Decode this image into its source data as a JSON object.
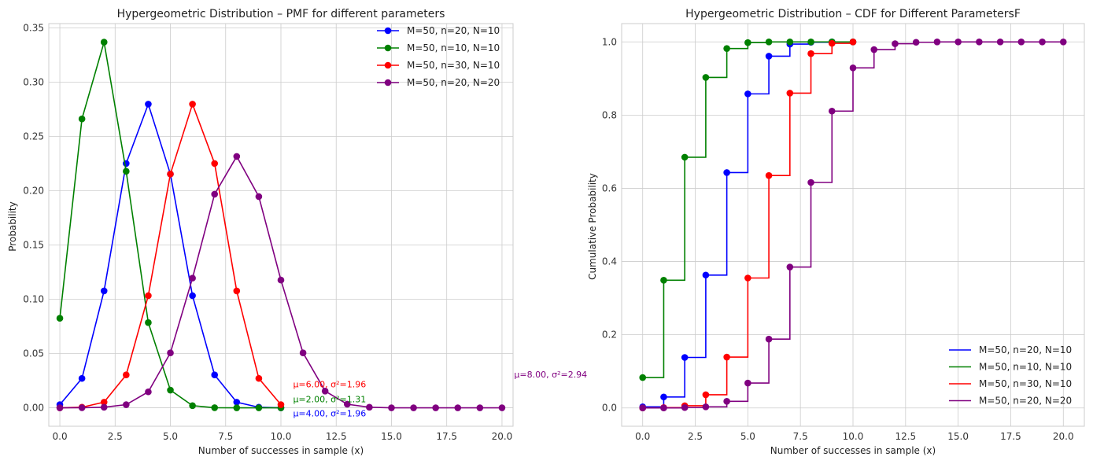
{
  "chart_data": [
    {
      "type": "line",
      "title": "Hypergeometric Distribution – PMF for different parameters",
      "xlabel": "Number of successes in sample (x)",
      "ylabel": "Probability",
      "xlim": [
        -0.5,
        20.5
      ],
      "ylim": [
        -0.017,
        0.354
      ],
      "xticks": [
        0.0,
        2.5,
        5.0,
        7.5,
        10.0,
        12.5,
        15.0,
        17.5,
        20.0
      ],
      "yticks": [
        0.0,
        0.05,
        0.1,
        0.15,
        0.2,
        0.25,
        0.3,
        0.35
      ],
      "xtick_labels": [
        "0.0",
        "2.5",
        "5.0",
        "7.5",
        "10.0",
        "12.5",
        "15.0",
        "17.5",
        "20.0"
      ],
      "ytick_labels": [
        "0.00",
        "0.05",
        "0.10",
        "0.15",
        "0.20",
        "0.25",
        "0.30",
        "0.35"
      ],
      "grid": true,
      "legend": "top-right",
      "series": [
        {
          "name": "M=50, n=20, N=10",
          "color": "#0000ff",
          "x": [
            0,
            1,
            2,
            3,
            4,
            5,
            6,
            7,
            8,
            9,
            10
          ],
          "y": [
            0.0029,
            0.0271,
            0.1077,
            0.2251,
            0.2798,
            0.2154,
            0.1033,
            0.0303,
            0.0052,
            0.0005,
            0.0
          ]
        },
        {
          "name": "M=50, n=10, N=10",
          "color": "#008000",
          "x": [
            0,
            1,
            2,
            3,
            4,
            5,
            6,
            7,
            8,
            9,
            10
          ],
          "y": [
            0.0825,
            0.2662,
            0.3369,
            0.2179,
            0.0785,
            0.0163,
            0.002,
            0.0001,
            0.0,
            0.0,
            0.0
          ]
        },
        {
          "name": "M=50, n=30, N=10",
          "color": "#ff0000",
          "x": [
            0,
            1,
            2,
            3,
            4,
            5,
            6,
            7,
            8,
            9,
            10
          ],
          "y": [
            0.0,
            0.0005,
            0.0052,
            0.0303,
            0.1033,
            0.2154,
            0.2798,
            0.2251,
            0.1077,
            0.0271,
            0.0029
          ]
        },
        {
          "name": "M=50, n=20, N=20",
          "color": "#800080",
          "x": [
            0,
            1,
            2,
            3,
            4,
            5,
            6,
            7,
            8,
            9,
            10,
            11,
            12,
            13,
            14,
            15,
            16,
            17,
            18,
            19,
            20
          ],
          "y": [
            0.0,
            0.0001,
            0.0005,
            0.0029,
            0.0147,
            0.0506,
            0.1195,
            0.1968,
            0.2316,
            0.1946,
            0.1177,
            0.0506,
            0.0154,
            0.0033,
            0.0005,
            0.0,
            0.0,
            0.0,
            0.0,
            0.0,
            0.0
          ]
        }
      ],
      "annotations": [
        {
          "text": "μ=4.00, σ²=1.96",
          "x": 10.55,
          "y": -0.008,
          "color": "#0000ff"
        },
        {
          "text": "μ=2.00, σ²=1.31",
          "x": 10.55,
          "y": 0.005,
          "color": "#008000"
        },
        {
          "text": "μ=6.00, σ²=1.96",
          "x": 10.55,
          "y": 0.019,
          "color": "#ff0000"
        },
        {
          "text": "μ=8.00, σ²=2.94",
          "x": 20.55,
          "y": 0.028,
          "color": "#800080"
        }
      ]
    },
    {
      "type": "line",
      "title": "Hypergeometric Distribution – CDF for Different ParametersF",
      "xlabel": "Number of successes in sample (x)",
      "ylabel": "Cumulative Probability",
      "xlim": [
        -1.0,
        21.0
      ],
      "ylim": [
        -0.05,
        1.05
      ],
      "xticks": [
        0.0,
        2.5,
        5.0,
        7.5,
        10.0,
        12.5,
        15.0,
        17.5,
        20.0
      ],
      "yticks": [
        0.0,
        0.2,
        0.4,
        0.6,
        0.8,
        1.0
      ],
      "xtick_labels": [
        "0.0",
        "2.5",
        "5.0",
        "7.5",
        "10.0",
        "12.5",
        "15.0",
        "17.5",
        "20.0"
      ],
      "ytick_labels": [
        "0.0",
        "0.2",
        "0.4",
        "0.6",
        "0.8",
        "1.0"
      ],
      "grid": true,
      "legend": "bottom-right",
      "step": "post",
      "series": [
        {
          "name": "M=50, n=20, N=10",
          "color": "#0000ff",
          "x": [
            0,
            1,
            2,
            3,
            4,
            5,
            6,
            7,
            8,
            9,
            10
          ],
          "y": [
            0.003,
            0.03,
            0.138,
            0.363,
            0.643,
            0.858,
            0.961,
            0.994,
            0.999,
            1.0,
            1.0
          ]
        },
        {
          "name": "M=50, n=10, N=10",
          "color": "#008000",
          "x": [
            0,
            1,
            2,
            3,
            4,
            5,
            6,
            7,
            8,
            9,
            10
          ],
          "y": [
            0.083,
            0.349,
            0.685,
            0.903,
            0.982,
            0.998,
            1.0,
            1.0,
            1.0,
            1.0,
            1.0
          ]
        },
        {
          "name": "M=50, n=30, N=10",
          "color": "#ff0000",
          "x": [
            0,
            1,
            2,
            3,
            4,
            5,
            6,
            7,
            8,
            9,
            10
          ],
          "y": [
            0.0,
            0.001,
            0.006,
            0.036,
            0.139,
            0.355,
            0.635,
            0.86,
            0.968,
            0.996,
            1.0
          ]
        },
        {
          "name": "M=50, n=20, N=20",
          "color": "#800080",
          "x": [
            0,
            1,
            2,
            3,
            4,
            5,
            6,
            7,
            8,
            9,
            10,
            11,
            12,
            13,
            14,
            15,
            16,
            17,
            18,
            19,
            20
          ],
          "y": [
            0.0,
            0.0,
            0.001,
            0.003,
            0.018,
            0.068,
            0.188,
            0.385,
            0.616,
            0.811,
            0.929,
            0.979,
            0.995,
            0.999,
            1.0,
            1.0,
            1.0,
            1.0,
            1.0,
            1.0,
            1.0
          ]
        }
      ]
    }
  ]
}
